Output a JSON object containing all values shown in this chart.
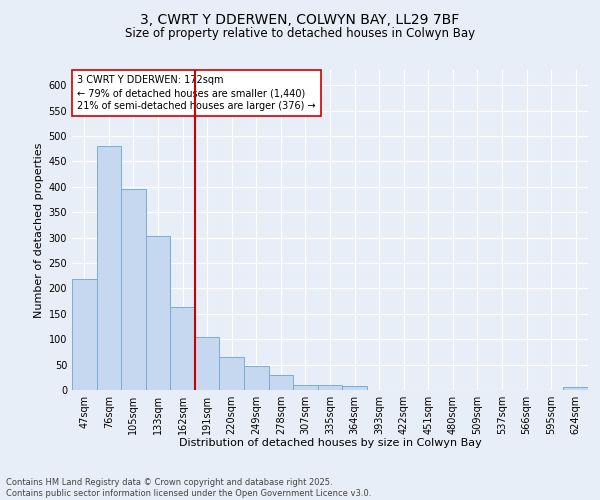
{
  "title_line1": "3, CWRT Y DDERWEN, COLWYN BAY, LL29 7BF",
  "title_line2": "Size of property relative to detached houses in Colwyn Bay",
  "xlabel": "Distribution of detached houses by size in Colwyn Bay",
  "ylabel": "Number of detached properties",
  "categories": [
    "47sqm",
    "76sqm",
    "105sqm",
    "133sqm",
    "162sqm",
    "191sqm",
    "220sqm",
    "249sqm",
    "278sqm",
    "307sqm",
    "335sqm",
    "364sqm",
    "393sqm",
    "422sqm",
    "451sqm",
    "480sqm",
    "509sqm",
    "537sqm",
    "566sqm",
    "595sqm",
    "624sqm"
  ],
  "values": [
    218,
    480,
    395,
    303,
    163,
    105,
    65,
    47,
    30,
    10,
    10,
    8,
    0,
    0,
    0,
    0,
    0,
    0,
    0,
    0,
    5
  ],
  "bar_color": "#c5d8f0",
  "bar_edge_color": "#7aadd4",
  "background_color": "#e8eef7",
  "grid_color": "#ffffff",
  "vline_x": 4.5,
  "vline_color": "#cc0000",
  "annotation_text": "3 CWRT Y DDERWEN: 172sqm\n← 79% of detached houses are smaller (1,440)\n21% of semi-detached houses are larger (376) →",
  "annotation_box_color": "#ffffff",
  "annotation_box_edge": "#cc0000",
  "ylim": [
    0,
    630
  ],
  "yticks": [
    0,
    50,
    100,
    150,
    200,
    250,
    300,
    350,
    400,
    450,
    500,
    550,
    600
  ],
  "footer": "Contains HM Land Registry data © Crown copyright and database right 2025.\nContains public sector information licensed under the Open Government Licence v3.0.",
  "title_fontsize": 10,
  "subtitle_fontsize": 8.5,
  "axis_label_fontsize": 8,
  "tick_fontsize": 7,
  "annotation_fontsize": 7,
  "footer_fontsize": 6
}
